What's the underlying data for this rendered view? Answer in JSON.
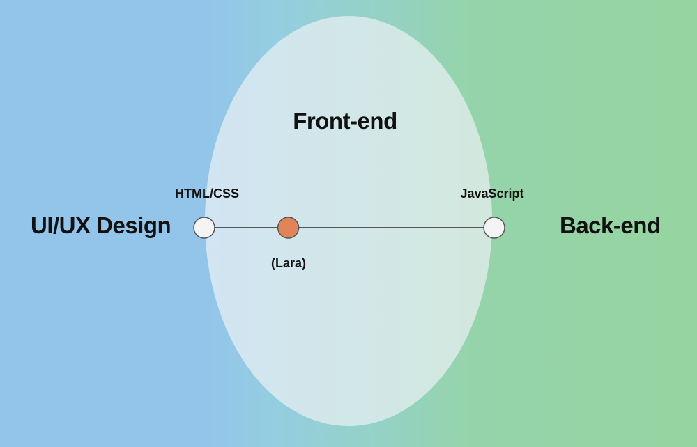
{
  "regions": {
    "left": "UI/UX Design",
    "center": "Front-end",
    "right": "Back-end"
  },
  "spectrum": {
    "left_end": "HTML/CSS",
    "right_end": "JavaScript",
    "marker": "(Lara)",
    "marker_position": 0.29
  },
  "colors": {
    "left_region": "#93c4ea",
    "right_region": "#96d4a1",
    "ellipse": "#d6e8ec",
    "line": "#555555",
    "endpoint_fill": "#f4f4f4",
    "marker_fill": "#e2845a"
  }
}
